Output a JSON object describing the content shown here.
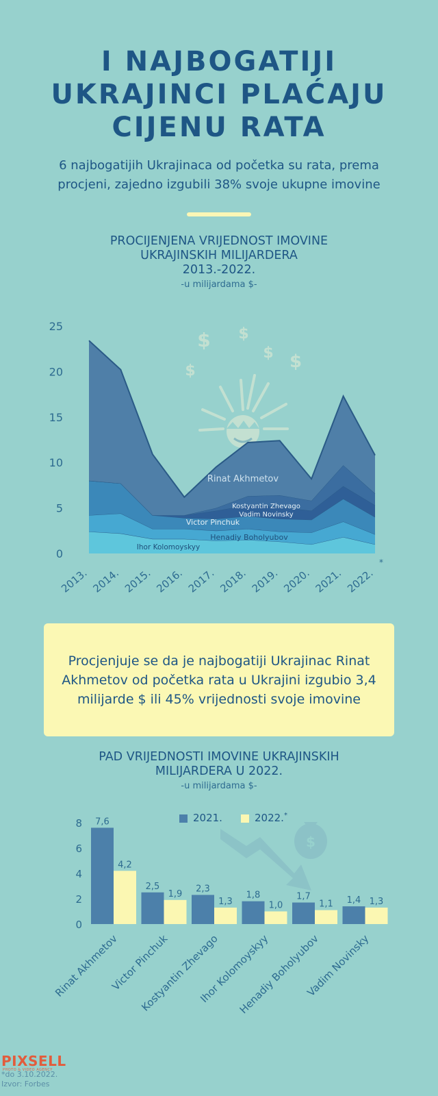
{
  "header": {
    "title_lines": [
      "I NAJBOGATIJI",
      "UKRAJINCI PLAĆAJU",
      "CIJENU RATA"
    ],
    "subtitle_lines": [
      "6 najbogatijih Ukrajinaca od početka su rata, prema",
      "procjeni, zajedno izgubili 38% svoje ukupne imovine"
    ]
  },
  "colors": {
    "background": "#97d1cd",
    "title": "#1e5685",
    "accent_yellow": "#fbf8b4",
    "bar_2021": "#4c80aa",
    "bar_2022": "#fbf7b2",
    "area_akhmetov": "#4f7fa8",
    "area_zhevago": "#3b6da0",
    "area_novinsky": "#2f5f97",
    "area_pinchuk": "#3b88b9",
    "area_boholyubov": "#46a8d2",
    "area_kolomoyskyy": "#5ec6dc",
    "logo": "#e25c3c"
  },
  "chart_data": [
    {
      "type": "area",
      "stacked": true,
      "title_lines": [
        "PROCIJENJENA VRIJEDNOST IMOVINE",
        "UKRAJINSKIH MILIJARDERA",
        "2013.-2022."
      ],
      "unit_label": "-u milijardama $-",
      "x": [
        "2013.",
        "2014.",
        "2015.",
        "2016.",
        "2017.",
        "2018.",
        "2019.",
        "2020.",
        "2021.",
        "2022."
      ],
      "x_footnote_mark": "*",
      "yticks": [
        "0",
        "5",
        "10",
        "15",
        "20",
        "25"
      ],
      "ylim": [
        0,
        25
      ],
      "series": [
        {
          "name": "Ihor Kolomoyskyy",
          "values": [
            2.4,
            2.2,
            1.6,
            1.6,
            1.4,
            1.5,
            1.3,
            1.0,
            1.8,
            1.0
          ]
        },
        {
          "name": "Henadiy Boholyubov",
          "values": [
            1.8,
            2.2,
            1.1,
            1.1,
            1.1,
            1.2,
            1.1,
            1.3,
            1.7,
            1.1
          ]
        },
        {
          "name": "Victor Pinchuk",
          "values": [
            3.8,
            3.3,
            1.5,
            1.2,
            1.3,
            1.4,
            1.4,
            1.4,
            2.5,
            1.9
          ]
        },
        {
          "name": "Vadim Novinsky",
          "values": [
            0.0,
            0.0,
            0.0,
            0.3,
            0.9,
            1.2,
            1.3,
            1.0,
            1.4,
            1.3
          ]
        },
        {
          "name": "Kostyantin Zhevago",
          "values": [
            0.0,
            0.0,
            0.0,
            0.0,
            0.3,
            1.0,
            1.3,
            1.1,
            2.3,
            1.3
          ]
        },
        {
          "name": "Rinat Akhmetov",
          "values": [
            15.4,
            12.5,
            6.7,
            2.0,
            4.5,
            5.9,
            6.0,
            2.4,
            7.6,
            4.2
          ]
        }
      ],
      "series_labels": [
        "Rinat Akhmetov",
        "Kostyantin Zhevago",
        "Vadim Novinsky",
        "Victor Pinchuk",
        "Henadiy Boholyubov",
        "Ihor Kolomoyskyy"
      ]
    },
    {
      "type": "bar",
      "title_lines": [
        "PAD VRIJEDNOSTI IMOVINE UKRAJINSKIH",
        "MILIJARDERA U 2022."
      ],
      "unit_label": "-u milijardama $-",
      "categories": [
        "Rinat Akhmetov",
        "Victor Pinchuk",
        "Kostyantin Zhevago",
        "Ihor Kolomoyskyy",
        "Henadiy Boholyubov",
        "Vadim Novinsky"
      ],
      "series": [
        {
          "name": "2021.",
          "values": [
            7.6,
            2.5,
            2.3,
            1.8,
            1.7,
            1.4
          ],
          "labels": [
            "7,6",
            "2,5",
            "2,3",
            "1,8",
            "1,7",
            "1,4"
          ]
        },
        {
          "name": "2022.",
          "values": [
            4.2,
            1.9,
            1.3,
            1.0,
            1.1,
            1.3
          ],
          "labels": [
            "4,2",
            "1,9",
            "1,3",
            "1,0",
            "1,1",
            "1,3"
          ],
          "footnote_mark": "*"
        }
      ],
      "yticks": [
        "0",
        "2",
        "4",
        "6",
        "8"
      ],
      "ylim": [
        0,
        8
      ]
    }
  ],
  "callout": {
    "text": "Procjenjuje se da je najbogatiji Ukrajinac Rinat Akhmetov od početka rata u Ukrajini izgubio 3,4 milijarde $ ili 45% vrijednosti svoje imovine"
  },
  "footer": {
    "logo_text": "PIXSELL",
    "logo_subtext": "PHOTO & VIDEO AGENCY",
    "footnote": "*do 3.10.2022.",
    "source": "Izvor: Forbes"
  },
  "icons": {
    "area_chart_decoration": "money-explosion-icon",
    "bar_chart_decoration": "money-bag-falling-arrow-icon"
  }
}
